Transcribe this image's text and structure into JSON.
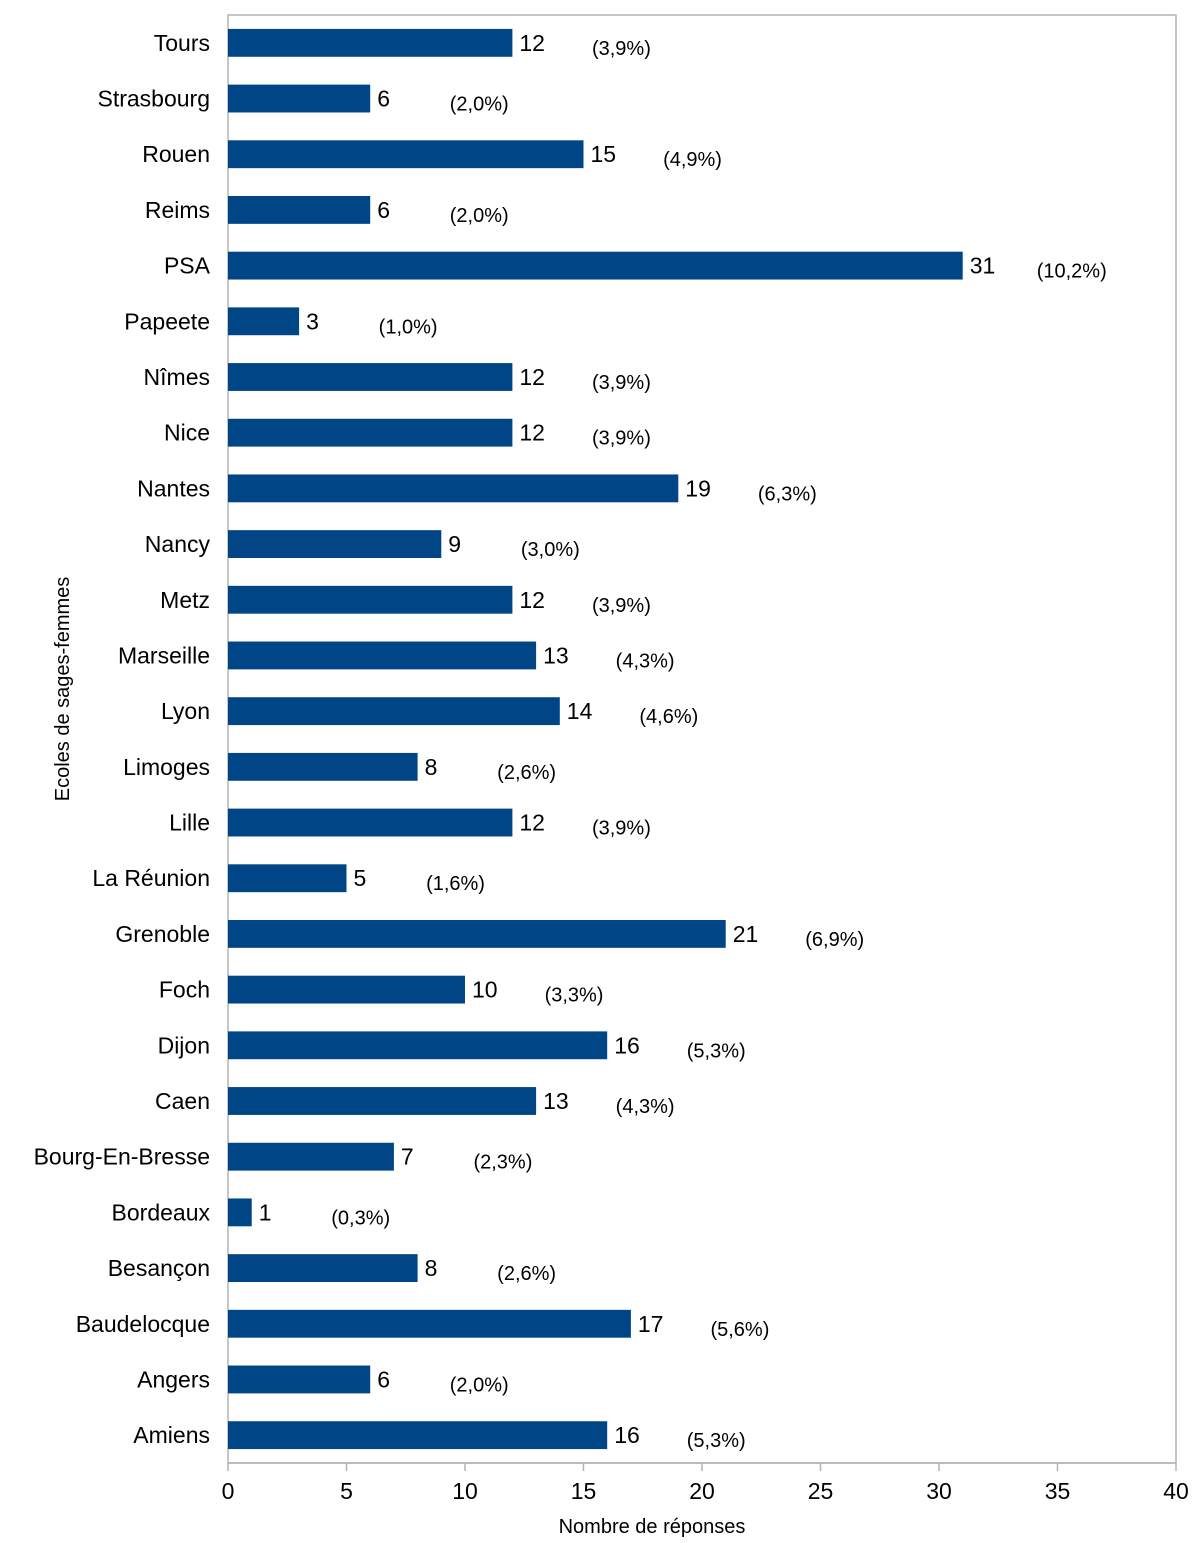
{
  "chart_data": {
    "type": "bar",
    "orientation": "horizontal",
    "xlabel": "Nombre de réponses",
    "ylabel": "Ecoles de sages-femmes",
    "xlim": [
      0,
      40
    ],
    "xticks": [
      0,
      5,
      10,
      15,
      20,
      25,
      30,
      35,
      40
    ],
    "grid": false,
    "legend": "none",
    "bar_color": "#004586",
    "categories": [
      "Tours",
      "Strasbourg",
      "Rouen",
      "Reims",
      "PSA",
      "Papeete",
      "Nîmes",
      "Nice",
      "Nantes",
      "Nancy",
      "Metz",
      "Marseille",
      "Lyon",
      "Limoges",
      "Lille",
      "La Réunion",
      "Grenoble",
      "Foch",
      "Dijon",
      "Caen",
      "Bourg-En-Bresse",
      "Bordeaux",
      "Besançon",
      "Baudelocque",
      "Angers",
      "Amiens"
    ],
    "values": [
      12,
      6,
      15,
      6,
      31,
      3,
      12,
      12,
      19,
      9,
      12,
      13,
      14,
      8,
      12,
      5,
      21,
      10,
      16,
      13,
      7,
      1,
      8,
      17,
      6,
      16
    ],
    "percent_labels": [
      "(3,9%)",
      "(2,0%)",
      "(4,9%)",
      "(2,0%)",
      "(10,2%)",
      "(1,0%)",
      "(3,9%)",
      "(3,9%)",
      "(6,3%)",
      "(3,0%)",
      "(3,9%)",
      "(4,3%)",
      "(4,6%)",
      "(2,6%)",
      "(3,9%)",
      "(1,6%)",
      "(6,9%)",
      "(3,3%)",
      "(5,3%)",
      "(4,3%)",
      "(2,3%)",
      "(0,3%)",
      "(2,6%)",
      "(5,6%)",
      "(2,0%)",
      "(5,3%)"
    ]
  }
}
